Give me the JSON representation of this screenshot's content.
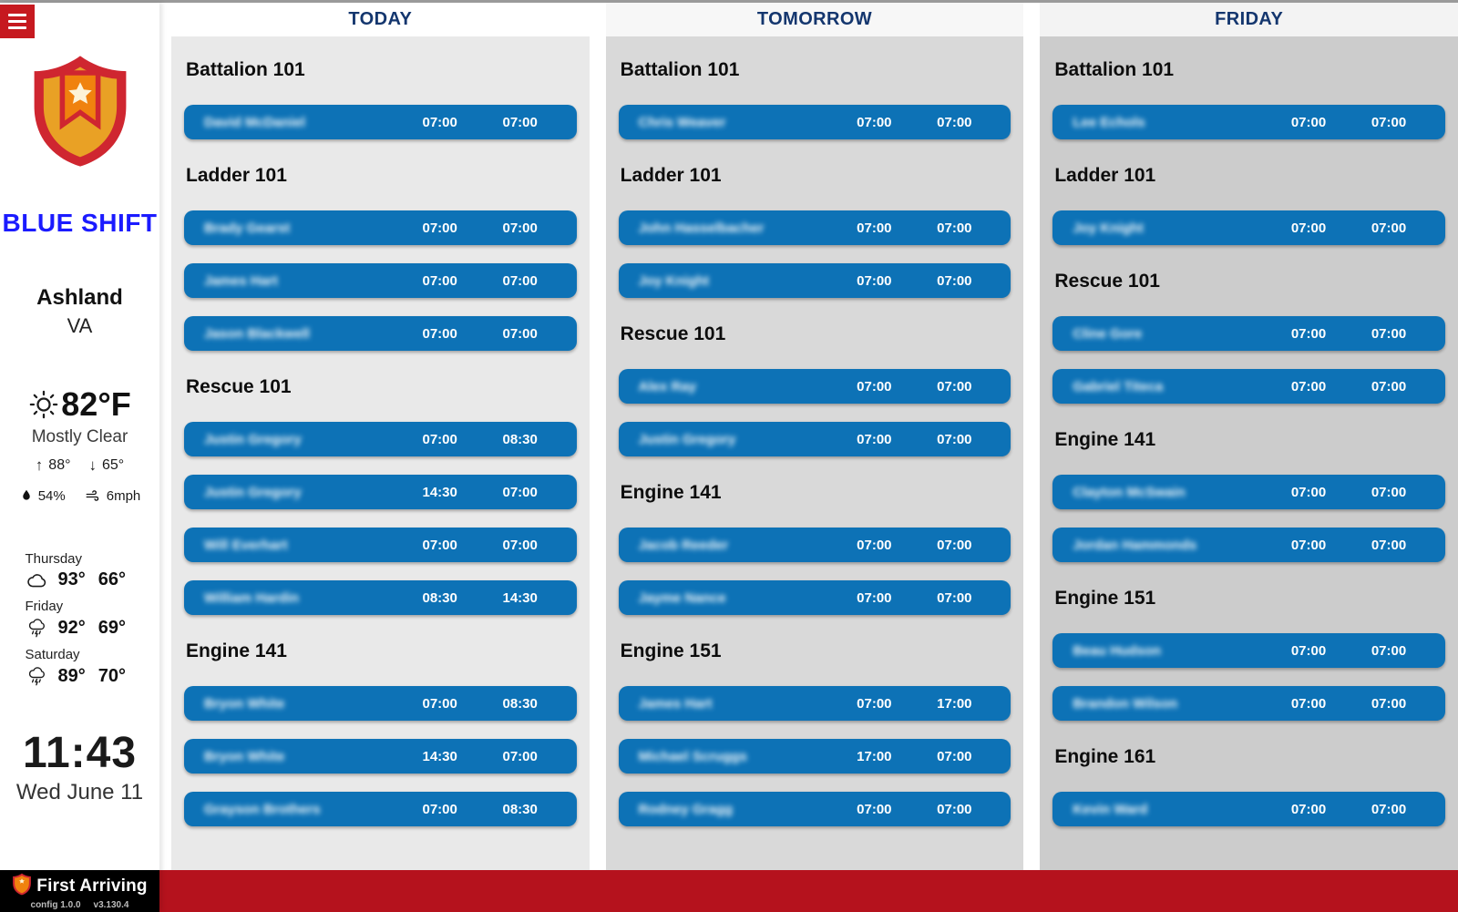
{
  "colors": {
    "row_blue": "#0d72b6",
    "title_navy": "#14366e",
    "bar_red": "#b5121d",
    "menu_red": "#c6191f",
    "shift_blue": "#1b1bff",
    "shield_red": "#cf2630",
    "shield_amber": "#e9a125",
    "shield_orange": "#f0820e"
  },
  "icons": {
    "menu": "hamburger-icon",
    "current_weather": "sun-icon",
    "high": "up-arrow-icon",
    "low": "down-arrow-icon",
    "humidity": "droplet-icon",
    "wind": "wind-icon",
    "thursday": "cloud-icon",
    "friday": "thunderstorm-icon",
    "saturday": "thunderstorm-icon"
  },
  "sidebar": {
    "shift_label": "BLUE SHIFT",
    "location": {
      "city": "Ashland",
      "state": "VA"
    },
    "weather": {
      "temp": "82°F",
      "condition": "Mostly Clear",
      "high": "88°",
      "low": "65°",
      "humidity": "54%",
      "wind": "6mph"
    },
    "forecast": [
      {
        "day": "Thursday",
        "icon": "cloud",
        "high": "93°",
        "low": "66°"
      },
      {
        "day": "Friday",
        "icon": "thunderstorm",
        "high": "92°",
        "low": "69°"
      },
      {
        "day": "Saturday",
        "icon": "thunderstorm",
        "high": "89°",
        "low": "70°"
      }
    ],
    "clock": {
      "time": "11:43",
      "date": "Wed June 11"
    },
    "footer": {
      "brand": "First Arriving",
      "config": "config 1.0.0",
      "version": "v3.130.4"
    }
  },
  "columns": [
    {
      "title": "TODAY",
      "header_bg": "#ffffff",
      "body_bg": "#e9e9e9",
      "sections": [
        {
          "name": "Battalion 101",
          "rows": [
            {
              "name": "David McDaniel",
              "start": "07:00",
              "end": "07:00"
            }
          ]
        },
        {
          "name": "Ladder 101",
          "rows": [
            {
              "name": "Brady Gearst",
              "start": "07:00",
              "end": "07:00"
            },
            {
              "name": "James Hart",
              "start": "07:00",
              "end": "07:00"
            },
            {
              "name": "Jason Blackwell",
              "start": "07:00",
              "end": "07:00"
            }
          ]
        },
        {
          "name": "Rescue 101",
          "rows": [
            {
              "name": "Justin Gregory",
              "start": "07:00",
              "end": "08:30"
            },
            {
              "name": "Justin Gregory",
              "start": "14:30",
              "end": "07:00"
            },
            {
              "name": "Will Everhart",
              "start": "07:00",
              "end": "07:00"
            },
            {
              "name": "William Hardin",
              "start": "08:30",
              "end": "14:30"
            }
          ]
        },
        {
          "name": "Engine 141",
          "rows": [
            {
              "name": "Bryon White",
              "start": "07:00",
              "end": "08:30"
            },
            {
              "name": "Bryon White",
              "start": "14:30",
              "end": "07:00"
            },
            {
              "name": "Grayson Brothers",
              "start": "07:00",
              "end": "08:30"
            }
          ]
        }
      ]
    },
    {
      "title": "TOMORROW",
      "header_bg": "#f7f7f7",
      "body_bg": "#d9d9d9",
      "sections": [
        {
          "name": "Battalion 101",
          "rows": [
            {
              "name": "Chris Weaver",
              "start": "07:00",
              "end": "07:00"
            }
          ]
        },
        {
          "name": "Ladder 101",
          "rows": [
            {
              "name": "John Hasselbacher",
              "start": "07:00",
              "end": "07:00"
            },
            {
              "name": "Joy Knight",
              "start": "07:00",
              "end": "07:00"
            }
          ]
        },
        {
          "name": "Rescue 101",
          "rows": [
            {
              "name": "Alex Ray",
              "start": "07:00",
              "end": "07:00"
            },
            {
              "name": "Justin Gregory",
              "start": "07:00",
              "end": "07:00"
            }
          ]
        },
        {
          "name": "Engine 141",
          "rows": [
            {
              "name": "Jacob Reeder",
              "start": "07:00",
              "end": "07:00"
            },
            {
              "name": "Jayme Nance",
              "start": "07:00",
              "end": "07:00"
            }
          ]
        },
        {
          "name": "Engine 151",
          "rows": [
            {
              "name": "James Hart",
              "start": "07:00",
              "end": "17:00"
            },
            {
              "name": "Michael Scruggs",
              "start": "17:00",
              "end": "07:00"
            },
            {
              "name": "Rodney Gragg",
              "start": "07:00",
              "end": "07:00"
            }
          ]
        }
      ]
    },
    {
      "title": "FRIDAY",
      "header_bg": "#f3f3f3",
      "body_bg": "#cccccc",
      "sections": [
        {
          "name": "Battalion 101",
          "rows": [
            {
              "name": "Lee Echols",
              "start": "07:00",
              "end": "07:00"
            }
          ]
        },
        {
          "name": "Ladder 101",
          "rows": [
            {
              "name": "Joy Knight",
              "start": "07:00",
              "end": "07:00"
            }
          ]
        },
        {
          "name": "Rescue 101",
          "rows": [
            {
              "name": "Cline Gore",
              "start": "07:00",
              "end": "07:00"
            },
            {
              "name": "Gabriel Titeca",
              "start": "07:00",
              "end": "07:00"
            }
          ]
        },
        {
          "name": "Engine 141",
          "rows": [
            {
              "name": "Clayton McSwain",
              "start": "07:00",
              "end": "07:00"
            },
            {
              "name": "Jordan Hammonds",
              "start": "07:00",
              "end": "07:00"
            }
          ]
        },
        {
          "name": "Engine 151",
          "rows": [
            {
              "name": "Beau Hudson",
              "start": "07:00",
              "end": "07:00"
            },
            {
              "name": "Brandon Wilson",
              "start": "07:00",
              "end": "07:00"
            }
          ]
        },
        {
          "name": "Engine 161",
          "rows": [
            {
              "name": "Kevin Ward",
              "start": "07:00",
              "end": "07:00"
            }
          ]
        }
      ]
    }
  ]
}
